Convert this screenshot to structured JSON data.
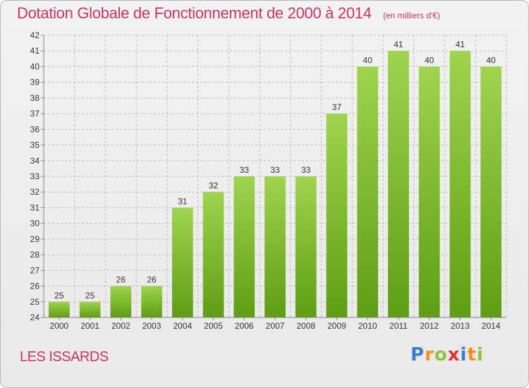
{
  "header": {
    "title": "Dotation Globale de Fonctionnement de 2000 à 2014",
    "subtitle": "(en milliers d'€)"
  },
  "footer": {
    "commune": "LES ISSARDS",
    "logo": "Proxiti"
  },
  "colors": {
    "title": "#cc3366",
    "bar_top": "#9fd44e",
    "bar_bottom": "#5e9e12",
    "grid": "#bbbbbb"
  },
  "chart_data": {
    "type": "bar",
    "title": "Dotation Globale de Fonctionnement de 2000 à 2014",
    "subtitle": "(en milliers d'€)",
    "categories": [
      "2000",
      "2001",
      "2002",
      "2003",
      "2004",
      "2005",
      "2006",
      "2007",
      "2008",
      "2009",
      "2010",
      "2011",
      "2012",
      "2013",
      "2014"
    ],
    "values": [
      25,
      25,
      26,
      26,
      31,
      32,
      33,
      33,
      33,
      37,
      40,
      41,
      40,
      41,
      40
    ],
    "ylim": [
      24,
      42
    ],
    "yticks": [
      24,
      25,
      26,
      27,
      28,
      29,
      30,
      31,
      32,
      33,
      34,
      35,
      36,
      37,
      38,
      39,
      40,
      41,
      42
    ],
    "grid": true,
    "data_labels": true,
    "legend": "none"
  }
}
